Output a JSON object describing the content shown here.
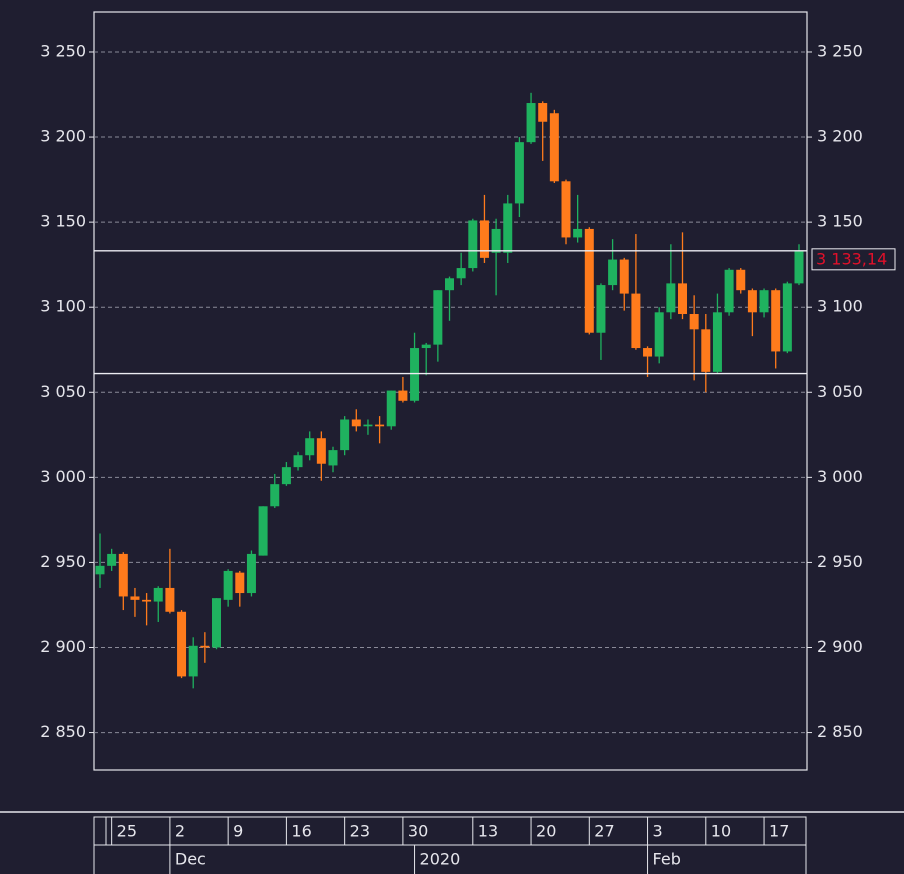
{
  "chart_data": {
    "type": "candlestick",
    "up_color": "#1fb25f",
    "down_color": "#ff7b1c",
    "ylim": [
      2828,
      3273.5
    ],
    "yticks": [
      {
        "value": 2850,
        "label": "2 850"
      },
      {
        "value": 2900,
        "label": "2 900"
      },
      {
        "value": 2950,
        "label": "2 950"
      },
      {
        "value": 3000,
        "label": "3 000"
      },
      {
        "value": 3050,
        "label": "3 050"
      },
      {
        "value": 3100,
        "label": "3 100"
      },
      {
        "value": 3150,
        "label": "3 150"
      },
      {
        "value": 3200,
        "label": "3 200"
      },
      {
        "value": 3250,
        "label": "3 250"
      }
    ],
    "grid": true,
    "hlines": [
      {
        "value": 3133.14,
        "label": "3 133,14",
        "color": "#e0102a"
      },
      {
        "value": 3061
      }
    ],
    "categories": [
      null,
      "25",
      null,
      null,
      null,
      null,
      "2",
      null,
      null,
      null,
      null,
      "9",
      null,
      null,
      null,
      null,
      "16",
      null,
      null,
      null,
      null,
      "23",
      null,
      null,
      null,
      null,
      "30",
      null,
      null,
      null,
      null,
      null,
      "13",
      null,
      null,
      null,
      null,
      "20",
      null,
      null,
      null,
      null,
      "27",
      null,
      null,
      null,
      null,
      "3",
      null,
      null,
      null,
      null,
      "10",
      null,
      null,
      null,
      null,
      "17",
      null,
      null,
      null
    ],
    "category_groups": [
      null,
      null,
      null,
      null,
      null,
      null,
      "Dec",
      null,
      null,
      null,
      null,
      null,
      null,
      null,
      null,
      null,
      null,
      null,
      null,
      null,
      null,
      null,
      null,
      null,
      null,
      null,
      null,
      "2020",
      null,
      null,
      null,
      null,
      null,
      null,
      null,
      null,
      null,
      null,
      null,
      null,
      null,
      null,
      null,
      null,
      null,
      null,
      null,
      "Feb",
      null,
      null,
      null,
      null,
      null,
      null,
      null,
      null,
      null,
      null,
      null,
      null,
      null
    ],
    "open": [
      2943,
      2948,
      2955,
      2930,
      2928,
      2927,
      2935,
      2921,
      2883,
      2901,
      2900,
      2928,
      2944,
      2932,
      2954,
      2983,
      2996,
      3006,
      3013,
      3023,
      3007,
      3016,
      3034,
      3030,
      3031,
      3030,
      3051,
      3045,
      3076,
      3078,
      3110,
      3117,
      3123,
      3151,
      3132,
      3132,
      3161,
      3197,
      3220,
      3214,
      3174,
      3141,
      3146,
      3085,
      3113,
      3128,
      3108,
      3076,
      3071,
      3097,
      3114,
      3096,
      3087,
      3062,
      3097,
      3122,
      3110,
      3097,
      3110,
      3074,
      3114
    ],
    "high": [
      2967,
      2958,
      2956,
      2935,
      2932,
      2936,
      2958,
      2922,
      2906,
      2909,
      2929,
      2946,
      2945,
      2957,
      2983,
      3002,
      3009,
      3015,
      3027,
      3027,
      3018,
      3036,
      3040,
      3034,
      3036,
      3051,
      3059,
      3085,
      3079,
      3110,
      3118,
      3132,
      3152,
      3166,
      3152,
      3166,
      3200,
      3226,
      3221,
      3216,
      3175,
      3166,
      3147,
      3114,
      3140,
      3129,
      3143,
      3077,
      3100,
      3137,
      3144,
      3107,
      3096,
      3108,
      3123,
      3123,
      3111,
      3111,
      3111,
      3115,
      3137
    ],
    "low": [
      2935,
      2945,
      2922,
      2918,
      2913,
      2915,
      2920,
      2882,
      2876,
      2891,
      2899,
      2924,
      2924,
      2930,
      2954,
      2982,
      2995,
      3004,
      3010,
      2998,
      3003,
      3013,
      3027,
      3025,
      3020,
      3028,
      3044,
      3044,
      3060,
      3068,
      3092,
      3113,
      3121,
      3126,
      3107,
      3126,
      3153,
      3196,
      3186,
      3173,
      3137,
      3138,
      3084,
      3069,
      3110,
      3098,
      3075,
      3059,
      3067,
      3093,
      3093,
      3057,
      3050,
      3061,
      3095,
      3108,
      3083,
      3094,
      3064,
      3073,
      3113
    ],
    "close": [
      2948,
      2955,
      2930,
      2928,
      2927,
      2935,
      2921,
      2883,
      2901,
      2900,
      2929,
      2945,
      2932,
      2955,
      2983,
      2996,
      3006,
      3013,
      3023,
      3008,
      3016,
      3034,
      3030,
      3031,
      3030,
      3051,
      3045,
      3076,
      3078,
      3110,
      3117,
      3123,
      3151,
      3129,
      3146,
      3161,
      3197,
      3220,
      3209,
      3174,
      3141,
      3146,
      3085,
      3113,
      3128,
      3108,
      3076,
      3071,
      3097,
      3114,
      3096,
      3087,
      3062,
      3097,
      3122,
      3110,
      3097,
      3110,
      3074,
      3114,
      3133.14
    ]
  }
}
